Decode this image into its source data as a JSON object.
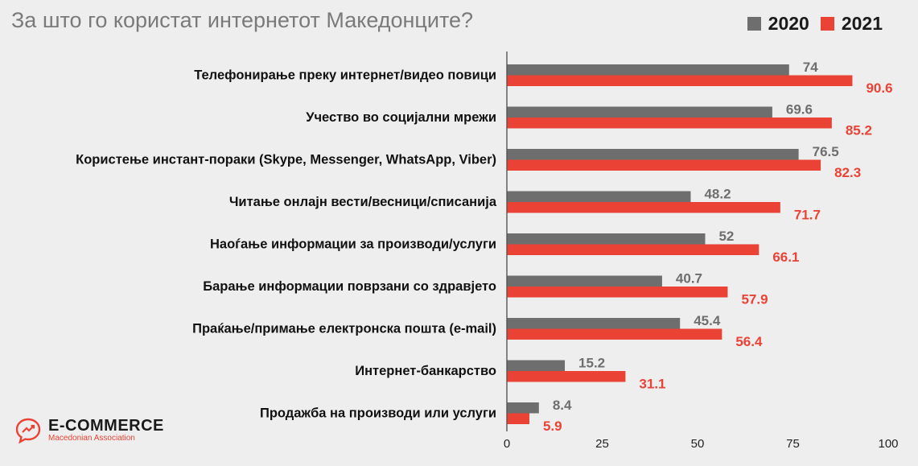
{
  "title": "За што го користат интернетот Македонците?",
  "legend": {
    "items": [
      {
        "label": "2020",
        "color": "#6e6e6e"
      },
      {
        "label": "2021",
        "color": "#ea4335"
      }
    ]
  },
  "logo": {
    "name": "E-COMMERCE",
    "subtitle": "Macedonian Association",
    "icon": "chat-bubble-chart-icon"
  },
  "chart_data": {
    "type": "bar",
    "orientation": "horizontal",
    "title": "За што го користат интернетот Македонците?",
    "categories": [
      "Телефонирање преку интернет/видео повици",
      "Учество во социјални мрежи",
      "Користење инстант-пораки (Skype, Messenger, WhatsApp, Viber)",
      "Читање онлајн вести/весници/списанија",
      "Наоѓање информации за производи/услуги",
      "Барање информации поврзани со здравјето",
      "Праќање/примање електронска пошта (e-mail)",
      "Интернет-банкарство",
      "Продажба на производи или услуги"
    ],
    "series": [
      {
        "name": "2020",
        "color": "#6e6e6e",
        "values": [
          74,
          69.6,
          76.5,
          48.2,
          52,
          40.7,
          45.4,
          15.2,
          8.4
        ]
      },
      {
        "name": "2021",
        "color": "#ea4335",
        "values": [
          90.6,
          85.2,
          82.3,
          71.7,
          66.1,
          57.9,
          56.4,
          31.1,
          5.9
        ]
      }
    ],
    "xlim": [
      0,
      100
    ],
    "xticks": [
      "0",
      "25",
      "50",
      "75",
      "100"
    ],
    "grid": false,
    "legend_position": "top-right"
  }
}
